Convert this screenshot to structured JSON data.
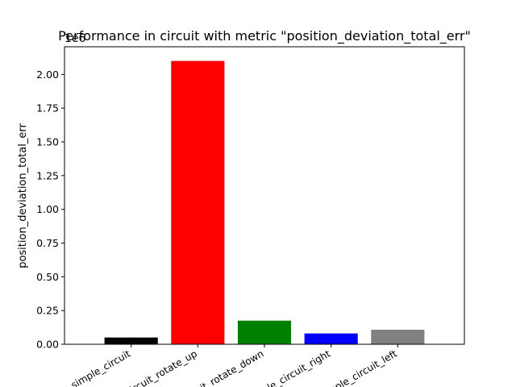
{
  "chart_data": {
    "type": "bar",
    "title": "Performance in circuit with metric \"position_deviation_total_err\"",
    "xlabel": "",
    "ylabel": "position_deviation_total_err",
    "offset_text": "1e6",
    "categories": [
      "simple_circuit",
      "circuit_rotate_up",
      "circuit_rotate_down",
      "simple_circuit_right",
      "simple_circuit_left"
    ],
    "values": [
      50000,
      2100000,
      175000,
      80000,
      108000
    ],
    "colors": [
      "#000000",
      "#ff0000",
      "#008000",
      "#0000ff",
      "#808080"
    ],
    "ylim": [
      0,
      2205000
    ],
    "yticks": [
      0,
      250000,
      500000,
      750000,
      1000000,
      1250000,
      1500000,
      1750000,
      2000000
    ],
    "ytick_labels": [
      "0.00",
      "0.25",
      "0.50",
      "0.75",
      "1.00",
      "1.25",
      "1.50",
      "1.75",
      "2.00"
    ],
    "grid": false,
    "legend": "none"
  }
}
